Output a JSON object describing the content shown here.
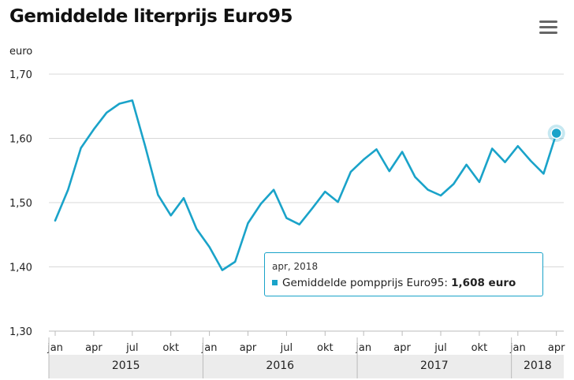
{
  "title": "Gemiddelde literprijs Euro95",
  "icons": {
    "menu": "hamburger-menu-icon"
  },
  "colors": {
    "series": "#1aa3c9",
    "grid": "#d8d8d8",
    "year_band": "#ececec"
  },
  "tooltip": {
    "date": "apr, 2018",
    "series_name": "Gemiddelde pompprijs Euro95",
    "value_text": "1,608 euro"
  },
  "chart_data": {
    "type": "line",
    "title": "Gemiddelde literprijs Euro95",
    "ylabel": "euro",
    "ylim": [
      1.3,
      1.7
    ],
    "yticks": [
      "1,30",
      "1,40",
      "1,50",
      "1,60",
      "1,70"
    ],
    "grid": true,
    "legend": "none",
    "x_tick_labels": [
      "jan",
      "apr",
      "jul",
      "okt",
      "jan",
      "apr",
      "jul",
      "okt",
      "jan",
      "apr",
      "jul",
      "okt",
      "jan",
      "apr"
    ],
    "years": [
      "2015",
      "2016",
      "2017",
      "2018"
    ],
    "x": [
      "2015-01",
      "2015-02",
      "2015-03",
      "2015-04",
      "2015-05",
      "2015-06",
      "2015-07",
      "2015-08",
      "2015-09",
      "2015-10",
      "2015-11",
      "2015-12",
      "2016-01",
      "2016-02",
      "2016-03",
      "2016-04",
      "2016-05",
      "2016-06",
      "2016-07",
      "2016-08",
      "2016-09",
      "2016-10",
      "2016-11",
      "2016-12",
      "2017-01",
      "2017-02",
      "2017-03",
      "2017-04",
      "2017-05",
      "2017-06",
      "2017-07",
      "2017-08",
      "2017-09",
      "2017-10",
      "2017-11",
      "2017-12",
      "2018-01",
      "2018-02",
      "2018-03",
      "2018-04"
    ],
    "series": [
      {
        "name": "Gemiddelde pompprijs Euro95",
        "values": [
          1.472,
          1.52,
          1.585,
          1.614,
          1.64,
          1.654,
          1.659,
          1.588,
          1.512,
          1.48,
          1.507,
          1.459,
          1.431,
          1.395,
          1.408,
          1.468,
          1.498,
          1.52,
          1.476,
          1.466,
          1.491,
          1.517,
          1.501,
          1.548,
          1.567,
          1.583,
          1.549,
          1.579,
          1.54,
          1.52,
          1.511,
          1.529,
          1.559,
          1.532,
          1.584,
          1.563,
          1.588,
          1.565,
          1.545,
          1.608
        ]
      }
    ]
  }
}
